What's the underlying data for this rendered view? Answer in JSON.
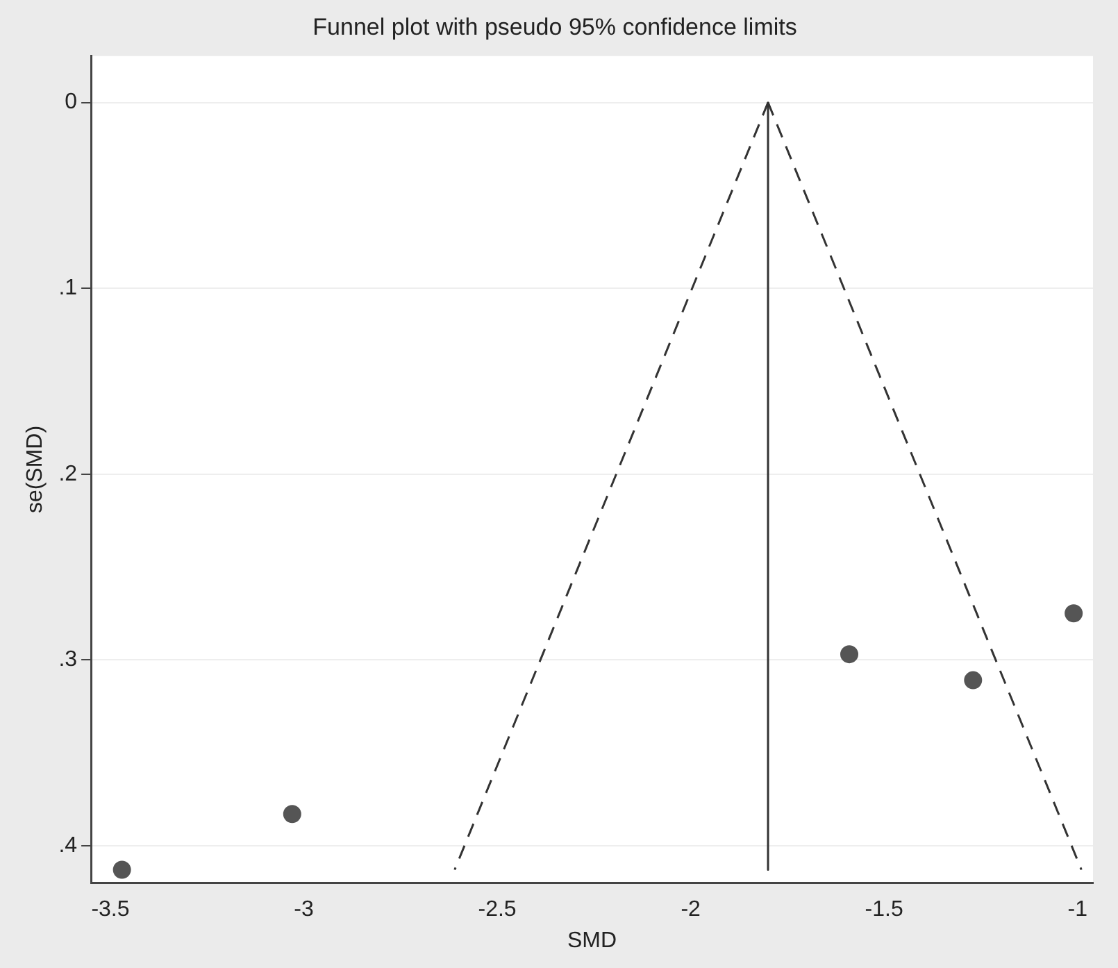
{
  "chart_data": {
    "type": "scatter",
    "title": "Funnel plot with pseudo 95% confidence limits",
    "xlabel": "SMD",
    "ylabel": "se(SMD)",
    "xlim": [
      -3.55,
      -0.96
    ],
    "xticks": [
      -3.5,
      -3,
      -2.5,
      -2,
      -1.5,
      -1
    ],
    "ylim": [
      0.42,
      -0.025
    ],
    "yticks": [
      0,
      {
        "value": 0.1,
        "label": ".1"
      },
      {
        "value": 0.2,
        "label": ".2"
      },
      {
        "value": 0.3,
        "label": ".3"
      },
      {
        "value": 0.4,
        "label": ".4"
      }
    ],
    "grid": "y",
    "legend": false,
    "series": [
      {
        "color": "#555555",
        "marker": "circle",
        "x": [
          -3.47,
          -3.03,
          -1.59,
          -1.27,
          -1.01
        ],
        "values": [
          0.413,
          0.383,
          0.297,
          0.311,
          0.275
        ]
      },
      {
        "type": "line",
        "color": "#333333",
        "line_style": "dashed",
        "marker": "none",
        "x": [
          -1.8,
          -2.61
        ],
        "values": [
          0,
          0.413
        ]
      },
      {
        "type": "line",
        "color": "#333333",
        "line_style": "dashed",
        "marker": "none",
        "x": [
          -1.8,
          -0.99
        ],
        "values": [
          0,
          0.413
        ]
      },
      {
        "type": "line",
        "color": "#333333",
        "line_style": "solid",
        "marker": "none",
        "x": [
          -1.8,
          -1.8
        ],
        "values": [
          0,
          0.413
        ]
      }
    ]
  }
}
